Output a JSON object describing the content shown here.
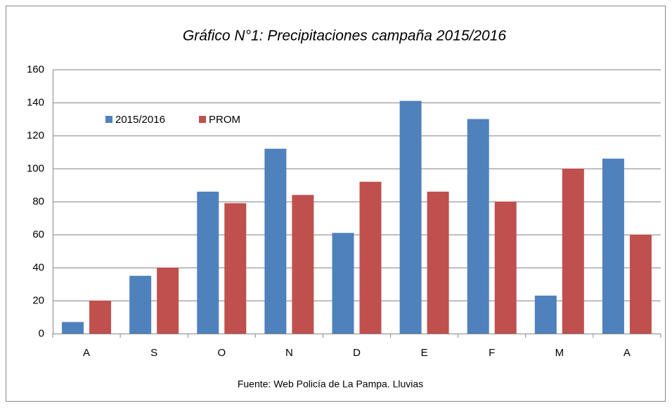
{
  "chart_data": {
    "type": "bar",
    "title": "Gráfico N°1: Precipitaciones campaña 2015/2016",
    "categories": [
      "A",
      "S",
      "O",
      "N",
      "D",
      "E",
      "F",
      "M",
      "A"
    ],
    "series": [
      {
        "name": "2015/2016",
        "color": "#4f81bd",
        "values": [
          7,
          35,
          86,
          112,
          61,
          141,
          130,
          23,
          106
        ]
      },
      {
        "name": "PROM",
        "color": "#c0504d",
        "values": [
          20,
          40,
          79,
          84,
          92,
          86,
          80,
          100,
          60
        ]
      }
    ],
    "ylim": [
      0,
      160
    ],
    "yticks": [
      0,
      20,
      40,
      60,
      80,
      100,
      120,
      140,
      160
    ],
    "grid": true,
    "legend": "upper-left",
    "source": "Fuente: Web Policía de La Pampa. Lluvias"
  }
}
